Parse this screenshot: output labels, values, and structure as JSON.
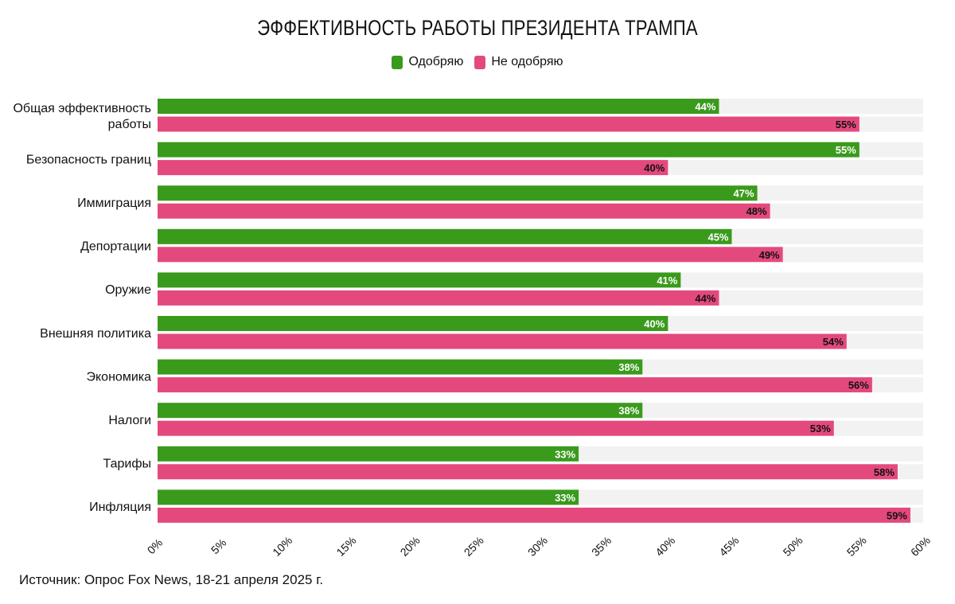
{
  "chart_data": {
    "type": "bar",
    "orientation": "horizontal",
    "title": "ЭФФЕКТИВНОСТЬ РАБОТЫ ПРЕЗИДЕНТА ТРАМПА",
    "categories": [
      [
        "Общая эффективность",
        "работы"
      ],
      [
        "Безопасность границ"
      ],
      [
        "Иммиграция"
      ],
      [
        "Депортации"
      ],
      [
        "Оружие"
      ],
      [
        "Внешняя политика"
      ],
      [
        "Экономика"
      ],
      [
        "Налоги"
      ],
      [
        "Тарифы"
      ],
      [
        "Инфляция"
      ]
    ],
    "series": [
      {
        "name": "Одобряю",
        "color": "#3a9a1c",
        "label_color": "#ffffff",
        "values": [
          44,
          55,
          47,
          45,
          41,
          40,
          38,
          38,
          33,
          33
        ]
      },
      {
        "name": "Не одобряю",
        "color": "#e4497d",
        "label_color": "#111111",
        "values": [
          55,
          40,
          48,
          49,
          44,
          54,
          56,
          53,
          58,
          59
        ]
      }
    ],
    "value_suffix": "%",
    "xlim": [
      0,
      60
    ],
    "xticks": [
      0,
      5,
      10,
      15,
      20,
      25,
      30,
      35,
      40,
      45,
      50,
      55,
      60
    ],
    "xtick_labels": [
      "0%",
      "5%",
      "10%",
      "15%",
      "20%",
      "25%",
      "30%",
      "35%",
      "40%",
      "45%",
      "50%",
      "55%",
      "60%"
    ],
    "legend_position": "top-center"
  },
  "source": "Источник: Опрос Fox News, 18-21 апреля 2025 г.",
  "colors": {
    "background": "#ffffff",
    "track": "#f2f2f2"
  }
}
